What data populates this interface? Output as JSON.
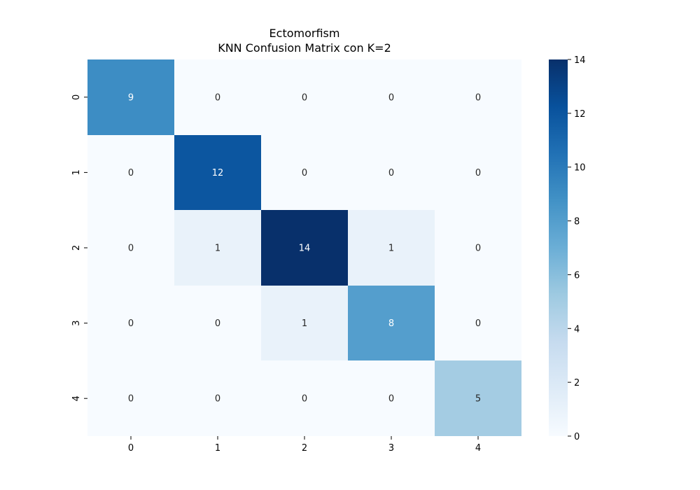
{
  "chart_data": {
    "type": "heatmap",
    "title": "Ectomorfism",
    "subtitle": "KNN Confusion Matrix con K=2",
    "xlabel": "",
    "ylabel": "",
    "x_ticks": [
      "0",
      "1",
      "2",
      "3",
      "4"
    ],
    "y_ticks": [
      "0",
      "1",
      "2",
      "3",
      "4"
    ],
    "matrix": [
      [
        9,
        0,
        0,
        0,
        0
      ],
      [
        0,
        12,
        0,
        0,
        0
      ],
      [
        0,
        1,
        14,
        1,
        0
      ],
      [
        0,
        0,
        1,
        8,
        0
      ],
      [
        0,
        0,
        0,
        0,
        5
      ]
    ],
    "colormap": "Blues",
    "color_range": [
      0,
      14
    ],
    "colorbar_ticks": [
      0,
      2,
      4,
      6,
      8,
      10,
      12,
      14
    ],
    "colorbar_ticks_text": [
      "0",
      "2",
      "4",
      "6",
      "8",
      "10",
      "12",
      "14"
    ],
    "annotations": true,
    "grid": false
  }
}
